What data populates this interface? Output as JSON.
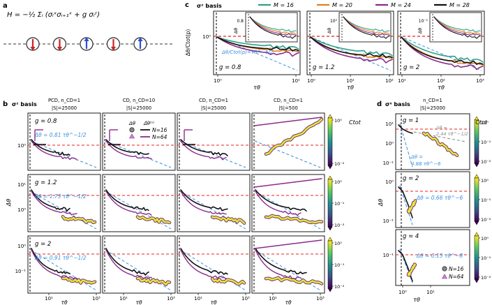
{
  "figure": {
    "panel_labels": [
      "a",
      "b",
      "c",
      "d"
    ],
    "hamiltonian": "H = −½ Σᵢ (σᵢˣσᵢ₊₁ˣ + g σᵢᶻ)",
    "spins": [
      "down",
      "down",
      "up",
      "down",
      "up"
    ],
    "colors": {
      "M16": "#2ca089",
      "M20": "#e08020",
      "M24": "#8b2a8b",
      "M28": "#111111",
      "N16": "#111111",
      "N64": "#8b2a8b",
      "red_dash": "#e8211b",
      "blue_dash": "#3b8fe0"
    }
  },
  "panel_c": {
    "basis_label": "σᶻ basis",
    "legend": [
      "M = 16",
      "M = 20",
      "M = 24",
      "M = 28"
    ],
    "ylabel": "Δθ/Ctot(p)",
    "xlabel": "τθ",
    "annotation": "Δθ/Ctot(p)=τθ^−1/2",
    "inset_ylabel": "Δθ",
    "subplots": [
      {
        "g_label": "g = 0.8",
        "xticks": [
          "10⁰",
          "10¹"
        ],
        "inset_ticks": [
          "0.8"
        ]
      },
      {
        "g_label": "g = 1.2",
        "xticks": [
          "10⁰",
          "10¹",
          "10²"
        ],
        "inset_ticks": [
          "10⁰"
        ]
      },
      {
        "g_label": "g = 2",
        "xticks": [
          "10¹",
          "10²",
          "10³"
        ],
        "inset_ticks": [
          "10⁻¹"
        ]
      }
    ],
    "yticks": [
      "10⁰"
    ]
  },
  "panel_b": {
    "basis_label": "σᶻ basis",
    "columns": [
      {
        "line1": "PCD, n_CD=1",
        "line2": "|S|=25000"
      },
      {
        "line1": "CD, n_CD=10",
        "line2": "|S|=25000"
      },
      {
        "line1": "CD, n_CD=1",
        "line2": "|S|=25000"
      },
      {
        "line1": "CD, n_CD=1",
        "line2": "|S|=500"
      }
    ],
    "rows": [
      {
        "g_label": "g = 0.8",
        "fit": "Δθ = 0.81 τθ^−1/2",
        "yticks": [
          "10⁰"
        ],
        "cbar_ticks": [
          "10⁰",
          "10⁻²"
        ]
      },
      {
        "g_label": "g = 1.2",
        "fit": "Δθ = 1.73 τθ^−1/2",
        "yticks": [
          "10¹",
          "10⁰"
        ],
        "cbar_ticks": [
          "10⁰",
          "10⁻¹",
          "10⁻²"
        ]
      },
      {
        "g_label": "g = 2",
        "fit": "Δθ = 0.91 τθ^−1/2",
        "yticks": [
          "10⁰",
          "10⁻¹"
        ],
        "cbar_ticks": [
          "10⁰",
          "10⁻¹",
          "10⁻²"
        ]
      }
    ],
    "legend_header": [
      "Δθ",
      "Δ̃θ⁽ˢ⁾"
    ],
    "legend": [
      "N=16",
      "N=64"
    ],
    "ylabel": "Δθ",
    "xlabel": "τθ",
    "xticks": [
      "10¹",
      "10³"
    ],
    "cbar_label": "Ctot"
  },
  "panel_d": {
    "basis_label": "σˣ basis",
    "column": {
      "line1": "n_CD=1",
      "line2": "|S|=25000"
    },
    "rows": [
      {
        "g_label": "g = 1",
        "fit": "Δθ = 4.88 τθ^−6",
        "extra": "Δθ = 2.44 τθ^−1/2",
        "yticks": [
          "10¹",
          "10⁰",
          "10⁻¹"
        ],
        "cbar_ticks": [
          "10⁰",
          "10⁻¹",
          "10⁻²"
        ]
      },
      {
        "g_label": "g = 2",
        "fit": "Δθ = 0.66 τθ^−6",
        "yticks": [
          "10⁰",
          "10⁻¹"
        ],
        "cbar_ticks": [
          "10⁰",
          "10⁻¹",
          "10⁻²"
        ]
      },
      {
        "g_label": "g = 4",
        "fit": "Δθ = 0.15 τθ^−8",
        "yticks": [
          "10⁻¹"
        ],
        "cbar_ticks": [
          "10⁰",
          "10⁻¹",
          "10⁻²"
        ]
      }
    ],
    "legend": [
      "N=16",
      "N=64"
    ],
    "ylabel": "Δθ",
    "xlabel": "τθ",
    "xticks": [
      "10⁰",
      "10¹"
    ],
    "cbar_label": "Ctot"
  }
}
